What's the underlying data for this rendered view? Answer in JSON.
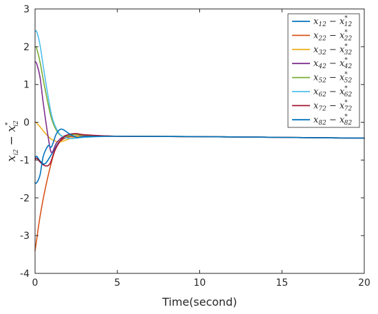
{
  "chart_data": {
    "type": "line",
    "xlabel": "Time(second)",
    "ylabel": "x_i2 − x*_i2",
    "xlim": [
      0,
      20
    ],
    "ylim": [
      -4,
      3
    ],
    "xticks": [
      0,
      5,
      10,
      15,
      20
    ],
    "yticks": [
      -4,
      -3,
      -2,
      -1,
      0,
      1,
      2,
      3
    ],
    "grid": false,
    "legend_position": "top-right",
    "series": [
      {
        "name": "x12 − x*12",
        "lhs": "12",
        "rhs": "12",
        "color": "#0072BD",
        "x": [
          0,
          0.1,
          0.3,
          0.6,
          1.0,
          1.5,
          2.0,
          3.0,
          5.0,
          10.0,
          15.0,
          20.0
        ],
        "y": [
          -0.95,
          -0.9,
          -1.02,
          -1.1,
          -0.85,
          -0.5,
          -0.38,
          -0.37,
          -0.37,
          -0.38,
          -0.4,
          -0.42
        ]
      },
      {
        "name": "x22 − x*22",
        "lhs": "22",
        "rhs": "22",
        "color": "#D95319",
        "x": [
          0,
          0.1,
          0.3,
          0.6,
          1.0,
          1.3,
          1.7,
          2.2,
          3.0,
          5.0,
          10.0,
          15.0,
          20.0
        ],
        "y": [
          -3.4,
          -3.1,
          -2.5,
          -1.8,
          -1.05,
          -0.65,
          -0.45,
          -0.38,
          -0.37,
          -0.37,
          -0.38,
          -0.4,
          -0.42
        ]
      },
      {
        "name": "x32 − x*32",
        "lhs": "32",
        "rhs": "32",
        "color": "#EDB120",
        "x": [
          0,
          0.1,
          0.3,
          0.6,
          1.0,
          1.5,
          2.0,
          2.5,
          3.0,
          5.0,
          10.0,
          15.0,
          20.0
        ],
        "y": [
          0.0,
          -0.02,
          -0.12,
          -0.28,
          -0.45,
          -0.52,
          -0.45,
          -0.38,
          -0.36,
          -0.37,
          -0.38,
          -0.4,
          -0.42
        ]
      },
      {
        "name": "x42 − x*42",
        "lhs": "42",
        "rhs": "42",
        "color": "#7E2F8E",
        "x": [
          0,
          0.1,
          0.3,
          0.5,
          0.8,
          1.0,
          1.3,
          1.7,
          2.2,
          3.0,
          5.0,
          10.0,
          15.0,
          20.0
        ],
        "y": [
          1.6,
          1.55,
          1.2,
          0.5,
          -0.4,
          -0.8,
          -0.55,
          -0.38,
          -0.32,
          -0.35,
          -0.37,
          -0.38,
          -0.4,
          -0.42
        ]
      },
      {
        "name": "x52 − x*52",
        "lhs": "52",
        "rhs": "52",
        "color": "#77AC30",
        "x": [
          0,
          0.1,
          0.3,
          0.6,
          1.0,
          1.4,
          1.8,
          2.3,
          3.0,
          5.0,
          10.0,
          15.0,
          20.0
        ],
        "y": [
          2.0,
          1.95,
          1.6,
          0.9,
          0.1,
          -0.28,
          -0.38,
          -0.33,
          -0.34,
          -0.37,
          -0.38,
          -0.4,
          -0.42
        ]
      },
      {
        "name": "x62 − x*62",
        "lhs": "62",
        "rhs": "62",
        "color": "#4DBEEE",
        "x": [
          0,
          0.1,
          0.3,
          0.6,
          1.0,
          1.4,
          1.8,
          2.3,
          3.0,
          5.0,
          10.0,
          15.0,
          20.0
        ],
        "y": [
          2.4,
          2.4,
          2.05,
          1.2,
          0.2,
          -0.25,
          -0.4,
          -0.43,
          -0.4,
          -0.37,
          -0.38,
          -0.4,
          -0.42
        ]
      },
      {
        "name": "x72 − x*72",
        "lhs": "72",
        "rhs": "72",
        "color": "#A2142F",
        "x": [
          0,
          0.1,
          0.3,
          0.6,
          0.9,
          1.2,
          1.6,
          2.0,
          2.5,
          3.0,
          5.0,
          10.0,
          15.0,
          20.0
        ],
        "y": [
          -1.0,
          -0.95,
          -1.05,
          -1.15,
          -1.1,
          -0.75,
          -0.45,
          -0.33,
          -0.3,
          -0.33,
          -0.37,
          -0.38,
          -0.4,
          -0.42
        ]
      },
      {
        "name": "x82 − x*82",
        "lhs": "82",
        "rhs": "82",
        "color": "#0072BD",
        "x": [
          0,
          0.1,
          0.3,
          0.5,
          0.8,
          1.0,
          1.3,
          1.6,
          2.0,
          2.5,
          3.0,
          5.0,
          10.0,
          15.0,
          20.0
        ],
        "y": [
          -1.6,
          -1.6,
          -1.4,
          -0.9,
          -0.62,
          -0.65,
          -0.3,
          -0.18,
          -0.28,
          -0.4,
          -0.38,
          -0.37,
          -0.38,
          -0.4,
          -0.42
        ]
      }
    ]
  }
}
